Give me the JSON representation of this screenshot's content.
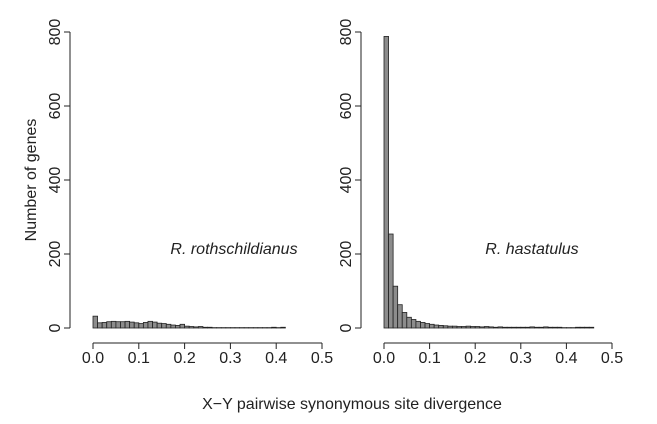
{
  "xlabel": "X−Y pairwise synonymous site divergence",
  "ylabel": "Number of genes",
  "chart_data": [
    {
      "type": "histogram",
      "annotation": "R. rothschildianus",
      "color": "#8c8c8c",
      "bins": [
        0,
        0.01,
        0.02,
        0.03,
        0.04,
        0.05,
        0.06,
        0.07,
        0.08,
        0.09,
        0.1,
        0.11,
        0.12,
        0.13,
        0.14,
        0.15,
        0.16,
        0.17,
        0.18,
        0.19,
        0.2,
        0.21,
        0.22,
        0.23,
        0.24,
        0.25,
        0.26,
        0.27,
        0.28,
        0.29,
        0.3,
        0.31,
        0.32,
        0.33,
        0.34,
        0.35,
        0.36,
        0.37,
        0.38,
        0.39,
        0.4,
        0.41,
        0.42
      ],
      "values": [
        32,
        14,
        15,
        17,
        18,
        17,
        17,
        18,
        16,
        14,
        12,
        15,
        18,
        16,
        13,
        12,
        10,
        8,
        7,
        10,
        5,
        4,
        3,
        4,
        2,
        2,
        1,
        1,
        1,
        1,
        1,
        1,
        1,
        1,
        1,
        1,
        1,
        1,
        1,
        2,
        1,
        2
      ],
      "xlim": [
        0,
        0.5
      ],
      "xticks": [
        {
          "value": 0,
          "label": "0.0"
        },
        0.1,
        0.2,
        0.3,
        0.4,
        0.5
      ],
      "ylim": [
        0,
        800
      ],
      "yticks": [
        0,
        200,
        400,
        600,
        800
      ]
    },
    {
      "type": "histogram",
      "annotation": "R. hastatulus",
      "color": "#8c8c8c",
      "bins": [
        0,
        0.01,
        0.02,
        0.03,
        0.04,
        0.05,
        0.06,
        0.07,
        0.08,
        0.09,
        0.1,
        0.11,
        0.12,
        0.13,
        0.14,
        0.15,
        0.16,
        0.17,
        0.18,
        0.19,
        0.2,
        0.21,
        0.22,
        0.23,
        0.24,
        0.25,
        0.26,
        0.27,
        0.28,
        0.29,
        0.3,
        0.31,
        0.32,
        0.33,
        0.34,
        0.35,
        0.36,
        0.37,
        0.38,
        0.39,
        0.4,
        0.41,
        0.42,
        0.43,
        0.44,
        0.45,
        0.46
      ],
      "values": [
        788,
        254,
        113,
        63,
        42,
        29,
        23,
        18,
        15,
        12,
        10,
        8,
        7,
        6,
        5,
        5,
        4,
        4,
        5,
        4,
        4,
        3,
        4,
        3,
        2,
        3,
        2,
        2,
        2,
        2,
        2,
        2,
        3,
        2,
        2,
        3,
        2,
        2,
        2,
        1,
        1,
        1,
        2,
        2,
        2,
        2
      ],
      "xlim": [
        0,
        0.5
      ],
      "xticks": [
        {
          "value": 0,
          "label": "0.0"
        },
        0.1,
        0.2,
        0.3,
        0.4,
        0.5
      ],
      "ylim": [
        0,
        800
      ],
      "yticks": [
        0,
        200,
        400,
        600,
        800
      ]
    }
  ]
}
